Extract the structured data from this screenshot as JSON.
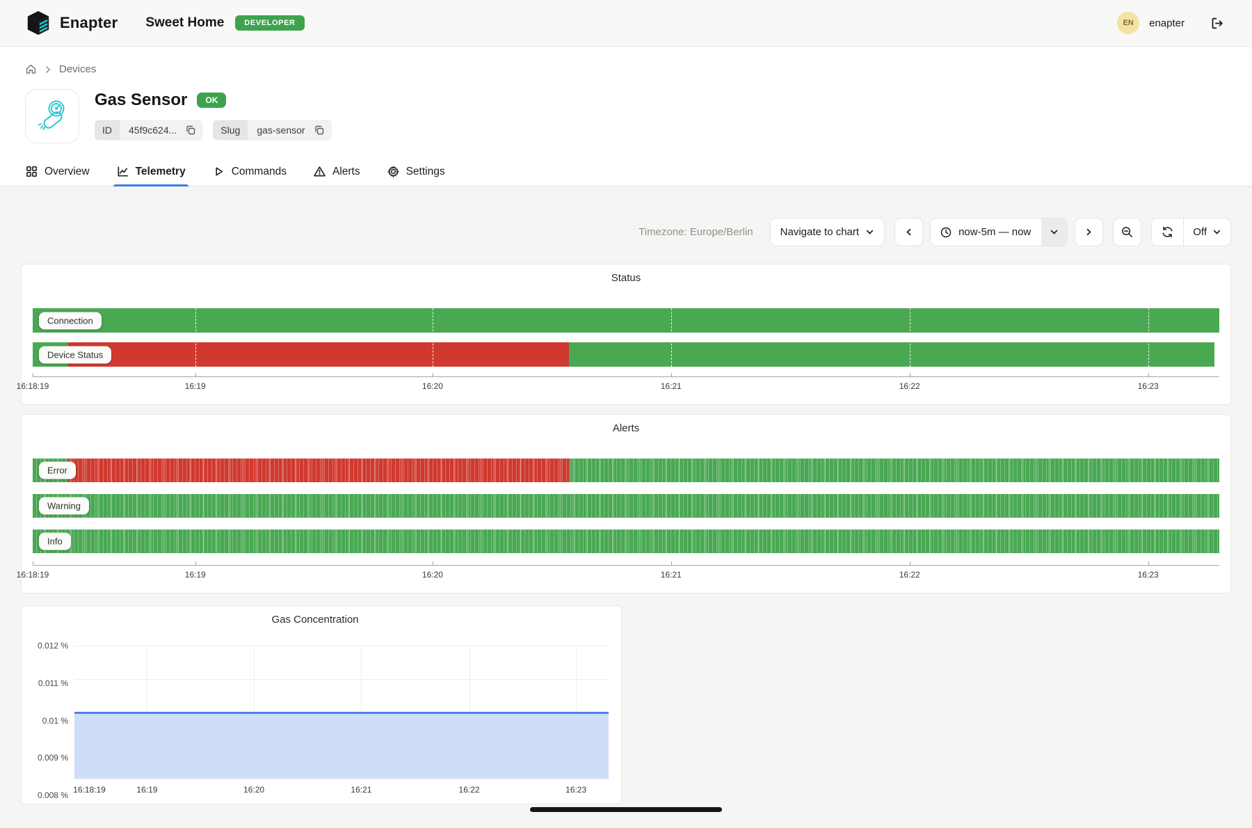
{
  "header": {
    "brand": "Enapter",
    "site_name": "Sweet Home",
    "role_badge": "DEVELOPER",
    "user_initials": "EN",
    "user_name": "enapter"
  },
  "breadcrumb": {
    "items": [
      "Devices"
    ]
  },
  "device": {
    "title": "Gas Sensor",
    "status_badge": "OK",
    "id_label": "ID",
    "id_value": "45f9c624...",
    "slug_label": "Slug",
    "slug_value": "gas-sensor"
  },
  "tabs": [
    {
      "label": "Overview",
      "icon": "grid-icon",
      "active": false
    },
    {
      "label": "Telemetry",
      "icon": "chart-icon",
      "active": true
    },
    {
      "label": "Commands",
      "icon": "play-icon",
      "active": false
    },
    {
      "label": "Alerts",
      "icon": "warning-icon",
      "active": false
    },
    {
      "label": "Settings",
      "icon": "gear-icon",
      "active": false
    }
  ],
  "toolbar": {
    "timezone": "Timezone: Europe/Berlin",
    "navigate_label": "Navigate to chart",
    "time_range": "now-5m — now",
    "refresh_interval": "Off"
  },
  "colors": {
    "brand_teal": "#24c5cf",
    "badge_green": "#3ea34e",
    "accent_blue": "#3b7df0",
    "status_ok_green": "#4aa853",
    "status_error_red": "#d0392f"
  },
  "chart_data": [
    {
      "type": "timeline",
      "title": "Status",
      "time_range": [
        "16:18:19",
        "16:23:19"
      ],
      "striped": false,
      "state_colors": {
        "ok": "#4aa853",
        "error": "#d0392f"
      },
      "rows": [
        {
          "label": "Connection",
          "segments": [
            {
              "state": "ok",
              "from": 0,
              "to": 100
            }
          ]
        },
        {
          "label": "Device Status",
          "segments": [
            {
              "state": "ok",
              "from": 0,
              "to": 3
            },
            {
              "state": "error",
              "from": 3,
              "to": 45.2
            },
            {
              "state": "ok",
              "from": 45.2,
              "to": 99.6
            }
          ]
        }
      ],
      "gridlines_pct": [
        13.7,
        33.7,
        53.8,
        73.9,
        94
      ],
      "x_ticks": [
        {
          "label": "16:18:19",
          "pct": 0
        },
        {
          "label": "16:19",
          "pct": 13.7
        },
        {
          "label": "16:20",
          "pct": 33.7
        },
        {
          "label": "16:21",
          "pct": 53.8
        },
        {
          "label": "16:22",
          "pct": 73.9
        },
        {
          "label": "16:23",
          "pct": 94
        }
      ]
    },
    {
      "type": "timeline",
      "title": "Alerts",
      "time_range": [
        "16:18:19",
        "16:23:19"
      ],
      "striped": true,
      "state_colors": {
        "ok": "#4aa853",
        "error": "#d0392f"
      },
      "rows": [
        {
          "label": "Error",
          "segments": [
            {
              "state": "ok",
              "from": 0,
              "to": 3
            },
            {
              "state": "error",
              "from": 3,
              "to": 45.2
            },
            {
              "state": "ok",
              "from": 45.2,
              "to": 100
            }
          ]
        },
        {
          "label": "Warning",
          "segments": [
            {
              "state": "ok",
              "from": 0,
              "to": 100
            }
          ]
        },
        {
          "label": "Info",
          "segments": [
            {
              "state": "ok",
              "from": 0,
              "to": 100
            }
          ]
        }
      ],
      "gridlines_pct": [],
      "x_ticks": [
        {
          "label": "16:18:19",
          "pct": 0
        },
        {
          "label": "16:19",
          "pct": 13.7
        },
        {
          "label": "16:20",
          "pct": 33.7
        },
        {
          "label": "16:21",
          "pct": 53.8
        },
        {
          "label": "16:22",
          "pct": 73.9
        },
        {
          "label": "16:23",
          "pct": 94
        }
      ]
    },
    {
      "type": "line",
      "title": "Gas Concentration",
      "unit": "%",
      "ylim": [
        0.008,
        0.012
      ],
      "y_ticks": [
        {
          "label": "0.012 %",
          "value": 0.012
        },
        {
          "label": "0.011 %",
          "value": 0.011
        },
        {
          "label": "0.01 %",
          "value": 0.01
        },
        {
          "label": "0.009 %",
          "value": 0.009
        },
        {
          "label": "0.008 %",
          "value": 0.008
        }
      ],
      "v_grid_pct": [
        13.6,
        33.6,
        53.7,
        73.9,
        93.9
      ],
      "x_ticks": [
        {
          "label": "16:18:19",
          "pct": 2.8
        },
        {
          "label": "16:19",
          "pct": 13.6
        },
        {
          "label": "16:20",
          "pct": 33.6
        },
        {
          "label": "16:21",
          "pct": 53.7
        },
        {
          "label": "16:22",
          "pct": 73.9
        },
        {
          "label": "16:23",
          "pct": 93.9
        }
      ],
      "series": [
        {
          "name": "Gas Concentration",
          "shape": "flat",
          "value": 0.01,
          "line_color": "#4c82ee",
          "fill_color": "#cfdef8"
        }
      ]
    }
  ]
}
